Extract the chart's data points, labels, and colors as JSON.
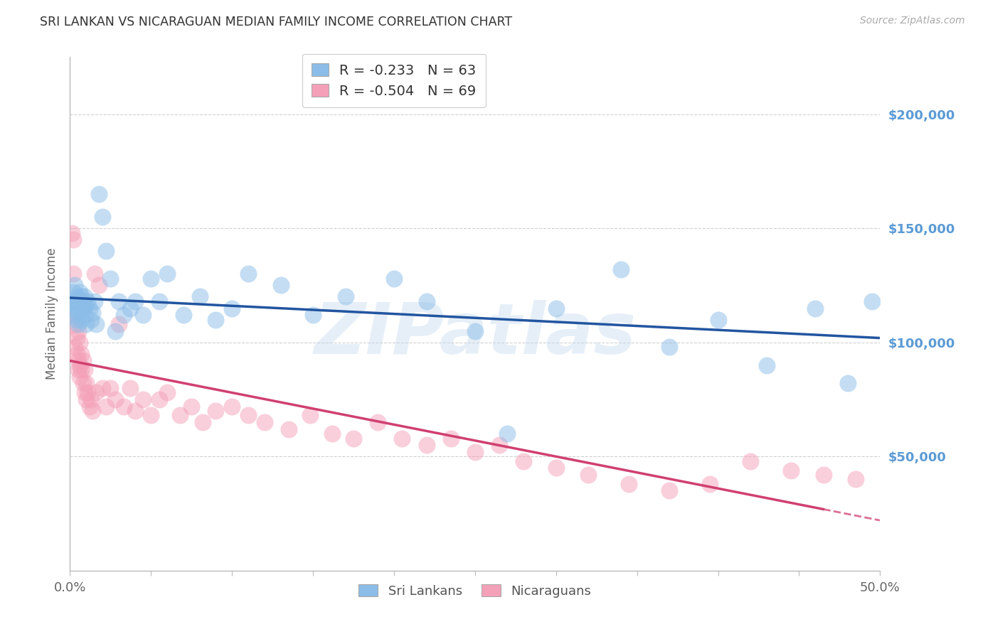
{
  "title": "SRI LANKAN VS NICARAGUAN MEDIAN FAMILY INCOME CORRELATION CHART",
  "source": "Source: ZipAtlas.com",
  "ylabel": "Median Family Income",
  "xlim": [
    0.0,
    0.5
  ],
  "ylim": [
    0,
    225000
  ],
  "yticks": [
    0,
    50000,
    100000,
    150000,
    200000
  ],
  "ytick_labels": [
    "",
    "$50,000",
    "$100,000",
    "$150,000",
    "$200,000"
  ],
  "xticks": [
    0.0,
    0.05,
    0.1,
    0.15,
    0.2,
    0.25,
    0.3,
    0.35,
    0.4,
    0.45,
    0.5
  ],
  "xtick_labels_show": [
    "0.0%",
    "",
    "",
    "",
    "",
    "",
    "",
    "",
    "",
    "",
    "50.0%"
  ],
  "sri_lankan_color": "#8BBDE8",
  "nicaraguan_color": "#F4A0B8",
  "sri_lankan_line_color": "#2255A0",
  "nicaraguan_line_color": "#D04070",
  "legend_label_sri": "Sri Lankans",
  "legend_label_nic": "Nicaraguans",
  "legend_sri_r": "R = -0.233",
  "legend_sri_n": "N = 63",
  "legend_nic_r": "R = -0.504",
  "legend_nic_n": "N = 69",
  "watermark": "ZIPatlas",
  "ytick_color": "#5B9BD5",
  "grid_color": "#D0D0D0",
  "background_color": "#FFFFFF",
  "sri_x": [
    0.001,
    0.002,
    0.002,
    0.003,
    0.003,
    0.003,
    0.004,
    0.004,
    0.004,
    0.005,
    0.005,
    0.005,
    0.006,
    0.006,
    0.006,
    0.007,
    0.007,
    0.007,
    0.008,
    0.008,
    0.009,
    0.009,
    0.01,
    0.01,
    0.011,
    0.012,
    0.013,
    0.014,
    0.015,
    0.016,
    0.018,
    0.02,
    0.022,
    0.025,
    0.028,
    0.03,
    0.033,
    0.037,
    0.04,
    0.045,
    0.05,
    0.055,
    0.06,
    0.07,
    0.08,
    0.09,
    0.1,
    0.11,
    0.13,
    0.15,
    0.17,
    0.2,
    0.22,
    0.25,
    0.27,
    0.3,
    0.34,
    0.37,
    0.4,
    0.43,
    0.46,
    0.48,
    0.495
  ],
  "sri_y": [
    118000,
    115000,
    122000,
    112000,
    118000,
    125000,
    110000,
    116000,
    120000,
    113000,
    119000,
    108000,
    122000,
    116000,
    118000,
    114000,
    120000,
    110000,
    115000,
    118000,
    112000,
    120000,
    116000,
    108000,
    118000,
    115000,
    110000,
    113000,
    118000,
    108000,
    165000,
    155000,
    140000,
    128000,
    105000,
    118000,
    112000,
    115000,
    118000,
    112000,
    128000,
    118000,
    130000,
    112000,
    120000,
    110000,
    115000,
    130000,
    125000,
    112000,
    120000,
    128000,
    118000,
    105000,
    60000,
    115000,
    132000,
    98000,
    110000,
    90000,
    115000,
    82000,
    118000
  ],
  "nic_x": [
    0.001,
    0.001,
    0.002,
    0.002,
    0.003,
    0.003,
    0.003,
    0.004,
    0.004,
    0.005,
    0.005,
    0.005,
    0.006,
    0.006,
    0.006,
    0.007,
    0.007,
    0.008,
    0.008,
    0.009,
    0.009,
    0.01,
    0.01,
    0.011,
    0.012,
    0.013,
    0.014,
    0.015,
    0.016,
    0.018,
    0.02,
    0.022,
    0.025,
    0.028,
    0.03,
    0.033,
    0.037,
    0.04,
    0.045,
    0.05,
    0.055,
    0.06,
    0.068,
    0.075,
    0.082,
    0.09,
    0.1,
    0.11,
    0.12,
    0.135,
    0.148,
    0.162,
    0.175,
    0.19,
    0.205,
    0.22,
    0.235,
    0.25,
    0.265,
    0.28,
    0.3,
    0.32,
    0.345,
    0.37,
    0.395,
    0.42,
    0.445,
    0.465,
    0.485
  ],
  "nic_y": [
    112000,
    148000,
    145000,
    130000,
    118000,
    108000,
    98000,
    102000,
    95000,
    105000,
    92000,
    88000,
    100000,
    90000,
    85000,
    95000,
    88000,
    92000,
    82000,
    88000,
    78000,
    82000,
    75000,
    78000,
    72000,
    75000,
    70000,
    130000,
    78000,
    125000,
    80000,
    72000,
    80000,
    75000,
    108000,
    72000,
    80000,
    70000,
    75000,
    68000,
    75000,
    78000,
    68000,
    72000,
    65000,
    70000,
    72000,
    68000,
    65000,
    62000,
    68000,
    60000,
    58000,
    65000,
    58000,
    55000,
    58000,
    52000,
    55000,
    48000,
    45000,
    42000,
    38000,
    35000,
    38000,
    48000,
    44000,
    42000,
    40000
  ]
}
